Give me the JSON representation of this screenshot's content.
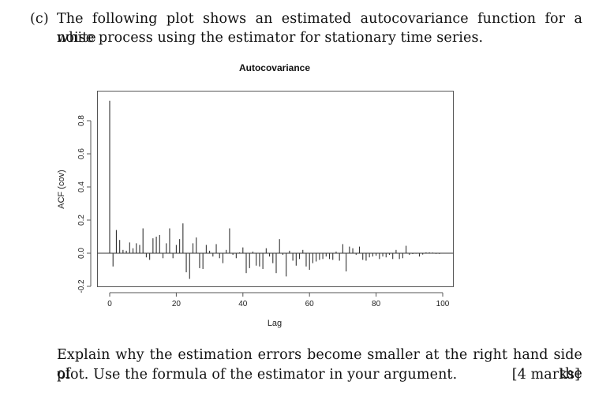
{
  "question": {
    "label": "(c)",
    "line1": "The following plot shows an estimated autocovariance function for a white",
    "line2": "noise process using the estimator for stationary time series."
  },
  "explain": {
    "line1": "Explain why the estimation errors become smaller at the right hand side of the",
    "line2": "plot. Use the formula of the estimator in your argument.",
    "marks": "[4 marks]"
  },
  "chart_data": {
    "type": "bar",
    "title": "Autocovariance",
    "xlabel": "Lag",
    "ylabel": "ACF (cov)",
    "xlim": [
      0,
      100
    ],
    "ylim": [
      -0.2,
      0.95
    ],
    "xticks": [
      0,
      20,
      40,
      60,
      80,
      100
    ],
    "xtick_labels": [
      "0",
      "20",
      "40",
      "60",
      "80",
      "100"
    ],
    "yticks": [
      -0.2,
      0.0,
      0.2,
      0.4,
      0.6,
      0.8
    ],
    "ytick_labels": [
      "-0.2",
      "0.0",
      "0.2",
      "0.4",
      "0.6",
      "0.8"
    ],
    "grid": false,
    "legend": null,
    "x": [
      0,
      1,
      2,
      3,
      4,
      5,
      6,
      7,
      8,
      9,
      10,
      11,
      12,
      13,
      14,
      15,
      16,
      17,
      18,
      19,
      20,
      21,
      22,
      23,
      24,
      25,
      26,
      27,
      28,
      29,
      30,
      31,
      32,
      33,
      34,
      35,
      36,
      37,
      38,
      39,
      40,
      41,
      42,
      43,
      44,
      45,
      46,
      47,
      48,
      49,
      50,
      51,
      52,
      53,
      54,
      55,
      56,
      57,
      58,
      59,
      60,
      61,
      62,
      63,
      64,
      65,
      66,
      67,
      68,
      69,
      70,
      71,
      72,
      73,
      74,
      75,
      76,
      77,
      78,
      79,
      80,
      81,
      82,
      83,
      84,
      85,
      86,
      87,
      88,
      89,
      90,
      91,
      92,
      93,
      94,
      95,
      96,
      97,
      98,
      99
    ],
    "values": [
      0.92,
      -0.08,
      0.14,
      0.08,
      0.02,
      0.015,
      0.065,
      0.03,
      0.06,
      0.05,
      0.15,
      -0.025,
      -0.04,
      0.09,
      0.1,
      0.11,
      -0.03,
      0.06,
      0.15,
      -0.03,
      0.05,
      0.085,
      0.18,
      -0.115,
      -0.155,
      0.06,
      0.095,
      -0.09,
      -0.095,
      0.05,
      0.015,
      -0.02,
      0.055,
      -0.03,
      -0.06,
      0.02,
      0.15,
      -0.01,
      -0.03,
      0.005,
      0.035,
      -0.12,
      -0.09,
      0.01,
      -0.075,
      -0.08,
      -0.095,
      0.03,
      -0.02,
      -0.06,
      -0.12,
      0.085,
      -0.01,
      -0.14,
      0.015,
      -0.045,
      -0.075,
      -0.035,
      0.02,
      -0.08,
      -0.1,
      -0.06,
      -0.05,
      -0.04,
      -0.035,
      -0.02,
      -0.035,
      -0.04,
      0.01,
      -0.045,
      0.055,
      -0.11,
      0.04,
      0.03,
      -0.01,
      0.04,
      -0.04,
      -0.045,
      -0.025,
      -0.02,
      -0.015,
      -0.035,
      -0.02,
      -0.025,
      -0.01,
      -0.035,
      0.02,
      -0.035,
      -0.03,
      0.045,
      -0.01,
      -0.005,
      -0.003,
      -0.02,
      -0.008,
      0.005,
      0.005,
      0.004,
      -0.004,
      -0.004
    ]
  }
}
